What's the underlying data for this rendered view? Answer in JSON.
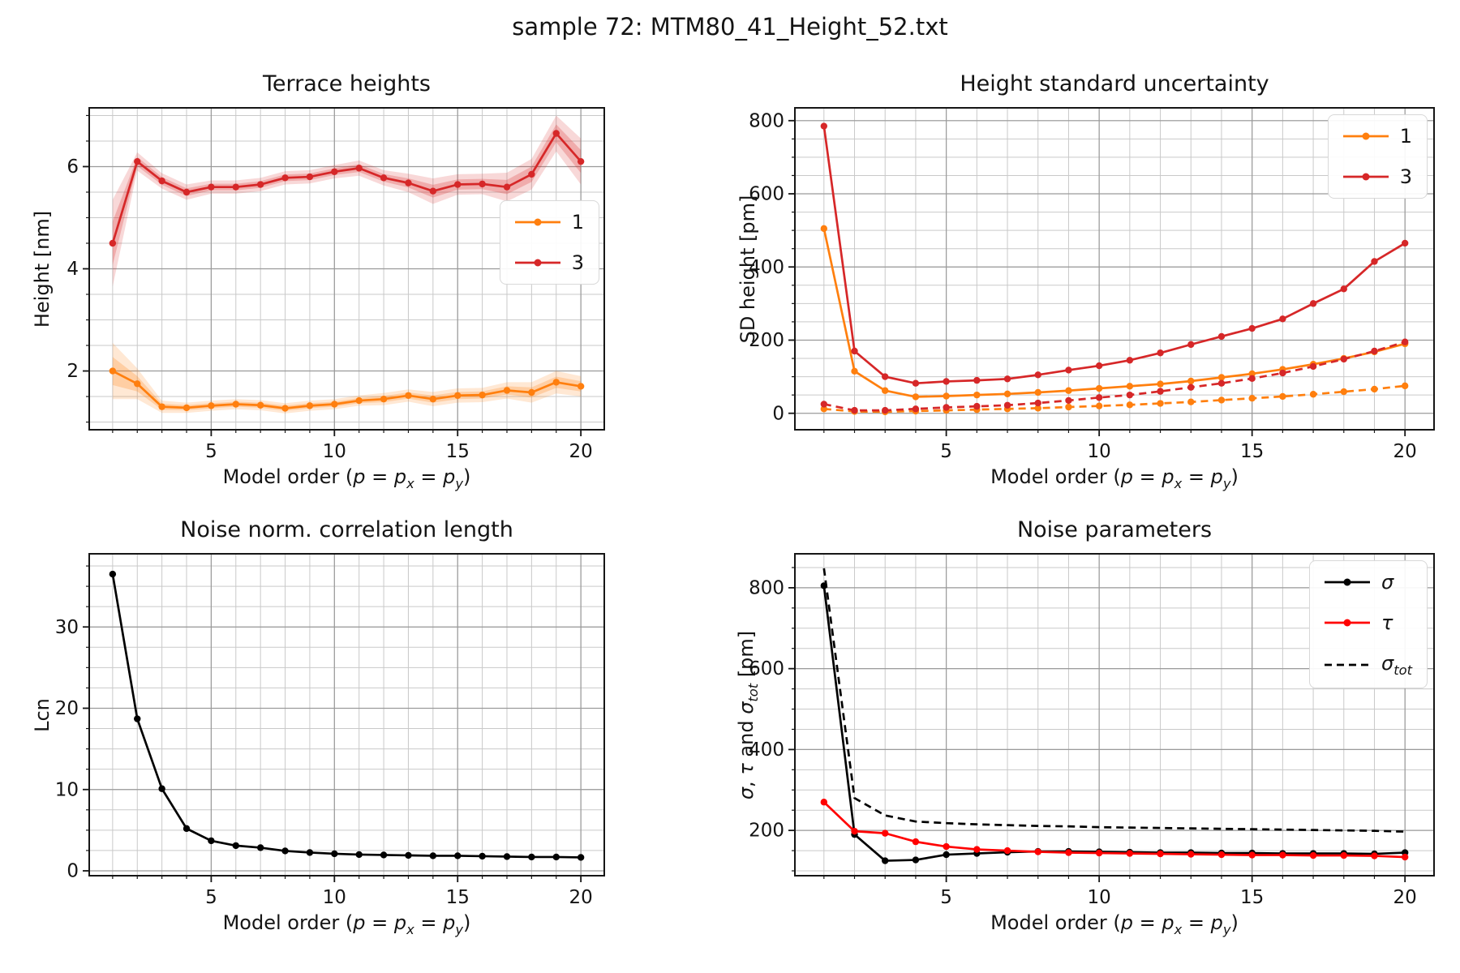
{
  "figure": {
    "suptitle": "sample 72: MTM80_41_Height_52.txt",
    "background": "#ffffff"
  },
  "colors": {
    "orange": "#ff7f0e",
    "dark_red": "#d62728",
    "bright_red": "#ff0000",
    "black": "#000000",
    "grid_major": "#9a9a9a",
    "grid_minor": "#c9c9c9",
    "spine": "#161616"
  },
  "chart_data": [
    {
      "id": "terrace-heights",
      "type": "line",
      "title": "Terrace heights",
      "xlabel": "Model order ($p$ = $p_x$ = $p_y$)",
      "ylabel": "Height [nm]",
      "xlim": [
        0.05,
        20.95
      ],
      "ylim": [
        0.85,
        7.15
      ],
      "xticks": [
        5,
        10,
        15,
        20
      ],
      "yticks": [
        2,
        4,
        6
      ],
      "x_minor_step": 1,
      "y_minor_step": 0.5,
      "grid": true,
      "legend_position": "right-center",
      "legend_pos": {
        "right": 6,
        "top": 114
      },
      "x": [
        1,
        2,
        3,
        4,
        5,
        6,
        7,
        8,
        9,
        10,
        11,
        12,
        13,
        14,
        15,
        16,
        17,
        18,
        19,
        20
      ],
      "series": [
        {
          "name": "1",
          "color": "#ff7f0e",
          "dashed": false,
          "marker": true,
          "in_legend": true,
          "values": [
            2.0,
            1.75,
            1.3,
            1.28,
            1.32,
            1.35,
            1.33,
            1.27,
            1.32,
            1.35,
            1.42,
            1.45,
            1.52,
            1.45,
            1.52,
            1.53,
            1.62,
            1.58,
            1.78,
            1.7
          ],
          "band": [
            0.55,
            0.3,
            0.12,
            0.1,
            0.1,
            0.1,
            0.1,
            0.1,
            0.1,
            0.1,
            0.1,
            0.12,
            0.12,
            0.14,
            0.14,
            0.14,
            0.16,
            0.2,
            0.22,
            0.2
          ]
        },
        {
          "name": "3",
          "color": "#d62728",
          "dashed": false,
          "marker": true,
          "in_legend": true,
          "values": [
            4.5,
            6.1,
            5.72,
            5.5,
            5.6,
            5.6,
            5.65,
            5.78,
            5.8,
            5.9,
            5.97,
            5.78,
            5.68,
            5.52,
            5.65,
            5.66,
            5.6,
            5.85,
            6.65,
            6.1
          ],
          "band": [
            0.85,
            0.18,
            0.15,
            0.15,
            0.13,
            0.13,
            0.13,
            0.13,
            0.13,
            0.13,
            0.15,
            0.15,
            0.18,
            0.25,
            0.2,
            0.2,
            0.28,
            0.3,
            0.35,
            0.45
          ]
        }
      ]
    },
    {
      "id": "height-standard-uncertainty",
      "type": "line",
      "title": "Height standard uncertainty",
      "xlabel": "Model order ($p$ = $p_x$ = $p_y$)",
      "ylabel": "SD height [pm]",
      "xlim": [
        0.05,
        20.95
      ],
      "ylim": [
        -45,
        835
      ],
      "xticks": [
        5,
        10,
        15,
        20
      ],
      "yticks": [
        0,
        200,
        400,
        600,
        800
      ],
      "x_minor_step": 1,
      "y_minor_step": 50,
      "grid": true,
      "legend_position": "top-right",
      "legend_pos": {
        "right": 8,
        "top": 8
      },
      "x": [
        1,
        2,
        3,
        4,
        5,
        6,
        7,
        8,
        9,
        10,
        11,
        12,
        13,
        14,
        15,
        16,
        17,
        18,
        19,
        20
      ],
      "series": [
        {
          "name": "1",
          "color": "#ff7f0e",
          "dashed": false,
          "marker": true,
          "in_legend": true,
          "values": [
            505,
            115,
            62,
            45,
            47,
            50,
            53,
            57,
            62,
            68,
            74,
            80,
            88,
            98,
            108,
            120,
            134,
            150,
            168,
            190
          ]
        },
        {
          "name": "3",
          "color": "#d62728",
          "dashed": false,
          "marker": true,
          "in_legend": true,
          "values": [
            785,
            170,
            100,
            82,
            87,
            90,
            94,
            105,
            118,
            130,
            145,
            165,
            188,
            210,
            232,
            258,
            300,
            340,
            415,
            465
          ]
        },
        {
          "name": "1",
          "color": "#ff7f0e",
          "dashed": true,
          "marker": true,
          "in_legend": false,
          "values": [
            12,
            5,
            4,
            6,
            8,
            10,
            12,
            14,
            17,
            20,
            23,
            27,
            31,
            36,
            41,
            46,
            52,
            59,
            66,
            75
          ]
        },
        {
          "name": "3",
          "color": "#d62728",
          "dashed": true,
          "marker": true,
          "in_legend": false,
          "values": [
            25,
            8,
            8,
            12,
            16,
            19,
            22,
            28,
            35,
            43,
            50,
            60,
            71,
            82,
            95,
            110,
            128,
            148,
            170,
            195
          ]
        }
      ]
    },
    {
      "id": "noise-correlation-length",
      "type": "line",
      "title": "Noise norm. correlation length",
      "xlabel": "Model order ($p$ = $p_x$ = $p_y$)",
      "ylabel": "Lcn",
      "xlim": [
        0.05,
        20.95
      ],
      "ylim": [
        -0.6,
        39
      ],
      "xticks": [
        5,
        10,
        15,
        20
      ],
      "yticks": [
        0,
        10,
        20,
        30
      ],
      "x_minor_step": 1,
      "y_minor_step": 2.5,
      "grid": true,
      "legend_position": "none",
      "legend_pos": null,
      "x": [
        1,
        2,
        3,
        4,
        5,
        6,
        7,
        8,
        9,
        10,
        11,
        12,
        13,
        14,
        15,
        16,
        17,
        18,
        19,
        20
      ],
      "series": [
        {
          "name": "Lcn",
          "color": "#000000",
          "dashed": false,
          "marker": true,
          "in_legend": false,
          "values": [
            36.5,
            18.7,
            10.1,
            5.2,
            3.7,
            3.1,
            2.85,
            2.45,
            2.25,
            2.1,
            2.0,
            1.95,
            1.9,
            1.85,
            1.85,
            1.8,
            1.75,
            1.7,
            1.7,
            1.65
          ]
        }
      ]
    },
    {
      "id": "noise-parameters",
      "type": "line",
      "title": "Noise parameters",
      "xlabel": "Model order ($p$ = $p_x$ = $p_y$)",
      "ylabel": "$σ$, $τ$ and $σ_tot$ [pm]",
      "xlim": [
        0.05,
        20.95
      ],
      "ylim": [
        88,
        884
      ],
      "xticks": [
        5,
        10,
        15,
        20
      ],
      "yticks": [
        200,
        400,
        600,
        800
      ],
      "x_minor_step": 1,
      "y_minor_step": 50,
      "grid": true,
      "legend_position": "top-right",
      "legend_pos": {
        "right": 8,
        "top": 8
      },
      "x": [
        1,
        2,
        3,
        4,
        5,
        6,
        7,
        8,
        9,
        10,
        11,
        12,
        13,
        14,
        15,
        16,
        17,
        18,
        19,
        20
      ],
      "series": [
        {
          "name": "$σ$",
          "color": "#000000",
          "dashed": false,
          "marker": true,
          "in_legend": true,
          "values": [
            805,
            190,
            125,
            127,
            140,
            143,
            146,
            148,
            148,
            147,
            146,
            145,
            145,
            144,
            144,
            143,
            143,
            143,
            142,
            145
          ]
        },
        {
          "name": "$τ$",
          "color": "#ff0000",
          "dashed": false,
          "marker": true,
          "in_legend": true,
          "values": [
            270,
            198,
            193,
            172,
            160,
            153,
            150,
            147,
            145,
            144,
            143,
            142,
            141,
            140,
            139,
            139,
            138,
            138,
            137,
            134
          ]
        },
        {
          "name": "$σ_tot$",
          "color": "#000000",
          "dashed": true,
          "marker": false,
          "in_legend": true,
          "values": [
            848,
            280,
            237,
            222,
            218,
            215,
            213,
            211,
            210,
            208,
            207,
            206,
            205,
            204,
            203,
            202,
            201,
            200,
            199,
            197
          ]
        }
      ]
    }
  ]
}
